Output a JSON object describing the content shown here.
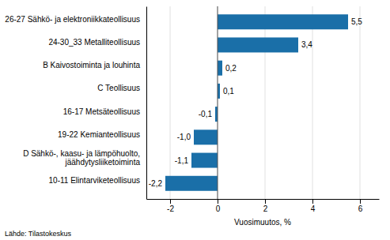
{
  "chart_data": {
    "type": "bar",
    "orientation": "horizontal",
    "categories": [
      "10-11 Elintarviketeollisuus",
      "D Sähkö-, kaasu- ja lämpöhuolto,\njäähdytysliiketoiminta",
      "19-22 Kemianteollisuus",
      "16-17 Metsäteollisuus",
      "C Teollisuus",
      "B Kaivostoiminta ja louhinta",
      "24-30_33 Metalliteollisuus",
      "26-27 Sähkö- ja elektroniikkateollisuus"
    ],
    "values": [
      -2.2,
      -1.1,
      -1.0,
      -0.1,
      0.1,
      0.2,
      3.4,
      5.5
    ],
    "value_labels": [
      "-2,2",
      "-1,1",
      "-1,0",
      "-0,1",
      "0,1",
      "0,2",
      "3,4",
      "5,5"
    ],
    "data_labels": true,
    "color": "#1a6fa8",
    "xlim": [
      -3.0,
      6.8
    ],
    "xticks": [
      -2,
      0,
      2,
      4,
      6
    ],
    "xlabel": "Vuosimuutos, %",
    "grid": true,
    "annotations": [
      "Lähde: Tilastokeskus"
    ]
  }
}
